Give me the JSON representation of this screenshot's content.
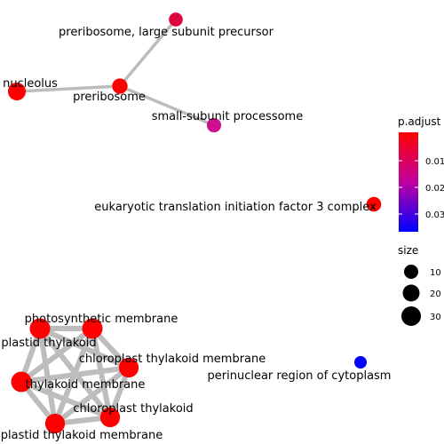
{
  "network": {
    "nodes": [
      {
        "id": "n_lsu",
        "label": "preribosome, large subunit precursor",
        "color": "#dd0840",
        "size_value": 8
      },
      {
        "id": "n_nuc",
        "label": "nucleolus",
        "color": "#ff0000",
        "size_value": 20
      },
      {
        "id": "n_pre",
        "label": "preribosome",
        "color": "#ff0000",
        "size_value": 12
      },
      {
        "id": "n_ssu",
        "label": "small-subunit processome",
        "color": "#cc1090",
        "size_value": 9
      },
      {
        "id": "n_eif3",
        "label": "eukaryotic translation initiation factor 3 complex",
        "color": "#ff0000",
        "size_value": 10
      },
      {
        "id": "n_photo",
        "label": "photosynthetic membrane",
        "color": "#ff0000",
        "size_value": 31
      },
      {
        "id": "n_pthy",
        "label": "plastid thylakoid",
        "color": "#ff0000",
        "size_value": 31
      },
      {
        "id": "n_cthym",
        "label": "chloroplast thylakoid membrane",
        "color": "#ff0000",
        "size_value": 28
      },
      {
        "id": "n_thym",
        "label": "thylakoid membrane",
        "color": "#ff0000",
        "size_value": 31
      },
      {
        "id": "n_cthy",
        "label": "chloroplast thylakoid",
        "color": "#ff0000",
        "size_value": 28
      },
      {
        "id": "n_pthym",
        "label": "plastid thylakoid membrane",
        "color": "#ff0000",
        "size_value": 28
      },
      {
        "id": "n_peri",
        "label": "perinuclear region of cytoplasm",
        "color": "#0000ff",
        "size_value": 5
      }
    ],
    "edges": [
      {
        "source": "n_pre",
        "target": "n_lsu"
      },
      {
        "source": "n_pre",
        "target": "n_nuc"
      },
      {
        "source": "n_pre",
        "target": "n_ssu"
      },
      {
        "source": "n_photo",
        "target": "n_pthy"
      },
      {
        "source": "n_photo",
        "target": "n_cthym"
      },
      {
        "source": "n_photo",
        "target": "n_thym"
      },
      {
        "source": "n_photo",
        "target": "n_cthy"
      },
      {
        "source": "n_photo",
        "target": "n_pthym"
      },
      {
        "source": "n_pthy",
        "target": "n_cthym"
      },
      {
        "source": "n_pthy",
        "target": "n_thym"
      },
      {
        "source": "n_pthy",
        "target": "n_cthy"
      },
      {
        "source": "n_pthy",
        "target": "n_pthym"
      },
      {
        "source": "n_cthym",
        "target": "n_thym"
      },
      {
        "source": "n_cthym",
        "target": "n_cthy"
      },
      {
        "source": "n_cthym",
        "target": "n_pthym"
      },
      {
        "source": "n_thym",
        "target": "n_cthy"
      },
      {
        "source": "n_thym",
        "target": "n_pthym"
      },
      {
        "source": "n_cthy",
        "target": "n_pthym"
      }
    ]
  },
  "legend": {
    "color": {
      "title": "p.adjust",
      "gradient_top": "#ff0000",
      "gradient_mid": "#c000a0",
      "gradient_bottom": "#0000ff",
      "ticks": [
        "0.01",
        "0.02",
        "0.03"
      ]
    },
    "size": {
      "title": "size",
      "entries": [
        "10",
        "20",
        "30"
      ]
    }
  }
}
